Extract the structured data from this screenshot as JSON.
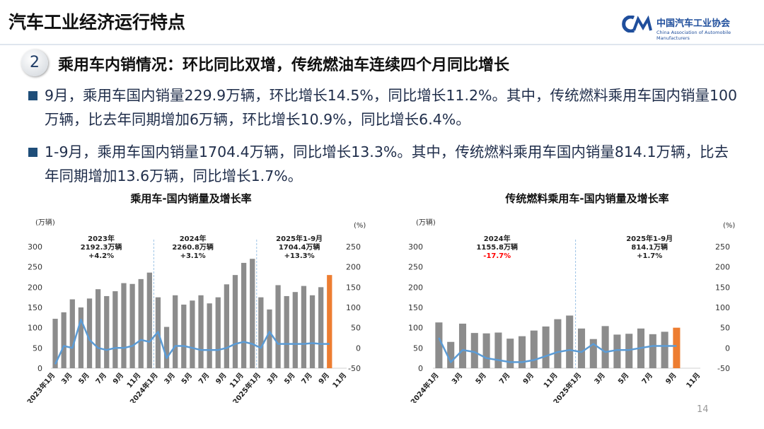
{
  "header": {
    "title": "汽车工业经济运行特点",
    "logo_cn": "中国汽车工业协会",
    "logo_en": "China Association of Automobile Manufacturers"
  },
  "section": {
    "number": "2",
    "title": "乘用车内销情况：环比同比双增，传统燃油车连续四个月同比增长"
  },
  "bullets": [
    "9月，乘用车国内销量229.9万辆，环比增长14.5%，同比增长11.2%。其中，传统燃料乘用车国内销量100万辆，比去年同期增加6万辆，环比增长10.9%，同比增长6.4%。",
    "1-9月，乘用车国内销量1704.4万辆，同比增长13.3%。其中，传统燃料乘用车国内销量814.1万辆，比去年同期增加13.6万辆，同比增长1.7%。"
  ],
  "page_number": "14",
  "chart_data": [
    {
      "type": "bar_line",
      "title": "乘用车-国内销量及增长率",
      "y_label": "(万辆)",
      "y2_label": "(%)",
      "categories": [
        "2023年1月",
        null,
        "3月",
        null,
        "5月",
        null,
        "7月",
        null,
        "9月",
        null,
        "11月",
        null,
        "2024年1月",
        null,
        "3月",
        null,
        "5月",
        null,
        "7月",
        null,
        "9月",
        null,
        "11月",
        null,
        "2025年1月",
        null,
        "3月",
        null,
        "5月",
        null,
        "7月",
        null,
        "9月",
        null,
        "11月"
      ],
      "series": [
        {
          "type": "bar",
          "color": "#8c8c8c",
          "highlight_color": "#ed7d31",
          "values": [
            122,
            138,
            170,
            150,
            172,
            195,
            178,
            190,
            210,
            208,
            220,
            236,
            175,
            102,
            180,
            157,
            167,
            180,
            160,
            175,
            207,
            230,
            260,
            270,
            175,
            145,
            205,
            178,
            188,
            203,
            180,
            200,
            230,
            null,
            null
          ]
        },
        {
          "type": "line",
          "axis": "y2",
          "color": "#5b9bd5",
          "values": [
            -40,
            5,
            0,
            70,
            20,
            0,
            -5,
            0,
            0,
            5,
            20,
            15,
            40,
            -25,
            5,
            5,
            0,
            -5,
            -5,
            -5,
            0,
            10,
            15,
            10,
            0,
            40,
            10,
            10,
            10,
            10,
            12,
            10,
            10,
            null,
            null
          ]
        }
      ],
      "ylim": [
        0,
        300
      ],
      "yticks": [
        0,
        50,
        100,
        150,
        200,
        250,
        300
      ],
      "y2lim": [
        -50,
        250
      ],
      "y2ticks": [
        -50,
        0,
        50,
        100,
        150,
        200,
        250
      ],
      "annotations": [
        {
          "lines": [
            "2023年",
            "2192.3万辆",
            "+4.2%"
          ]
        },
        {
          "lines": [
            "2024年",
            "2260.8万辆",
            "+3.1%"
          ]
        },
        {
          "lines": [
            "2025年1-9月",
            "1704.4万辆",
            "+13.3%"
          ]
        }
      ]
    },
    {
      "type": "bar_line",
      "title": "传统燃料乘用车-国内销量及增长率",
      "y_label": "(万辆)",
      "y2_label": "(%)",
      "categories": [
        "2024年1月",
        null,
        "3月",
        null,
        "5月",
        null,
        "7月",
        null,
        "9月",
        null,
        "11月",
        null,
        "2025年1月",
        null,
        "3月",
        null,
        "5月",
        null,
        "7月",
        null,
        "9月",
        null,
        "11月"
      ],
      "series": [
        {
          "type": "bar",
          "color": "#8c8c8c",
          "highlight_color": "#ed7d31",
          "values": [
            113,
            65,
            110,
            87,
            86,
            88,
            73,
            79,
            93,
            103,
            121,
            130,
            98,
            72,
            104,
            83,
            85,
            98,
            84,
            90,
            100,
            null,
            null
          ]
        },
        {
          "type": "line",
          "axis": "y2",
          "color": "#5b9bd5",
          "values": [
            25,
            -35,
            -5,
            -10,
            -25,
            -30,
            -35,
            -35,
            -30,
            -20,
            -10,
            -5,
            -10,
            10,
            -10,
            -5,
            -5,
            0,
            5,
            5,
            5,
            null,
            null
          ]
        }
      ],
      "ylim": [
        0,
        300
      ],
      "yticks": [
        0,
        50,
        100,
        150,
        200,
        250,
        300
      ],
      "y2lim": [
        -50,
        250
      ],
      "y2ticks": [
        -50,
        0,
        50,
        100,
        150,
        200,
        250
      ],
      "annotations": [
        {
          "lines": [
            "2024年",
            "1155.8万辆",
            {
              "text": "-17.7%",
              "color": "#ff0000"
            }
          ]
        },
        {
          "lines": [
            "2025年1-9月",
            "814.1万辆",
            "+1.7%"
          ]
        }
      ]
    }
  ]
}
